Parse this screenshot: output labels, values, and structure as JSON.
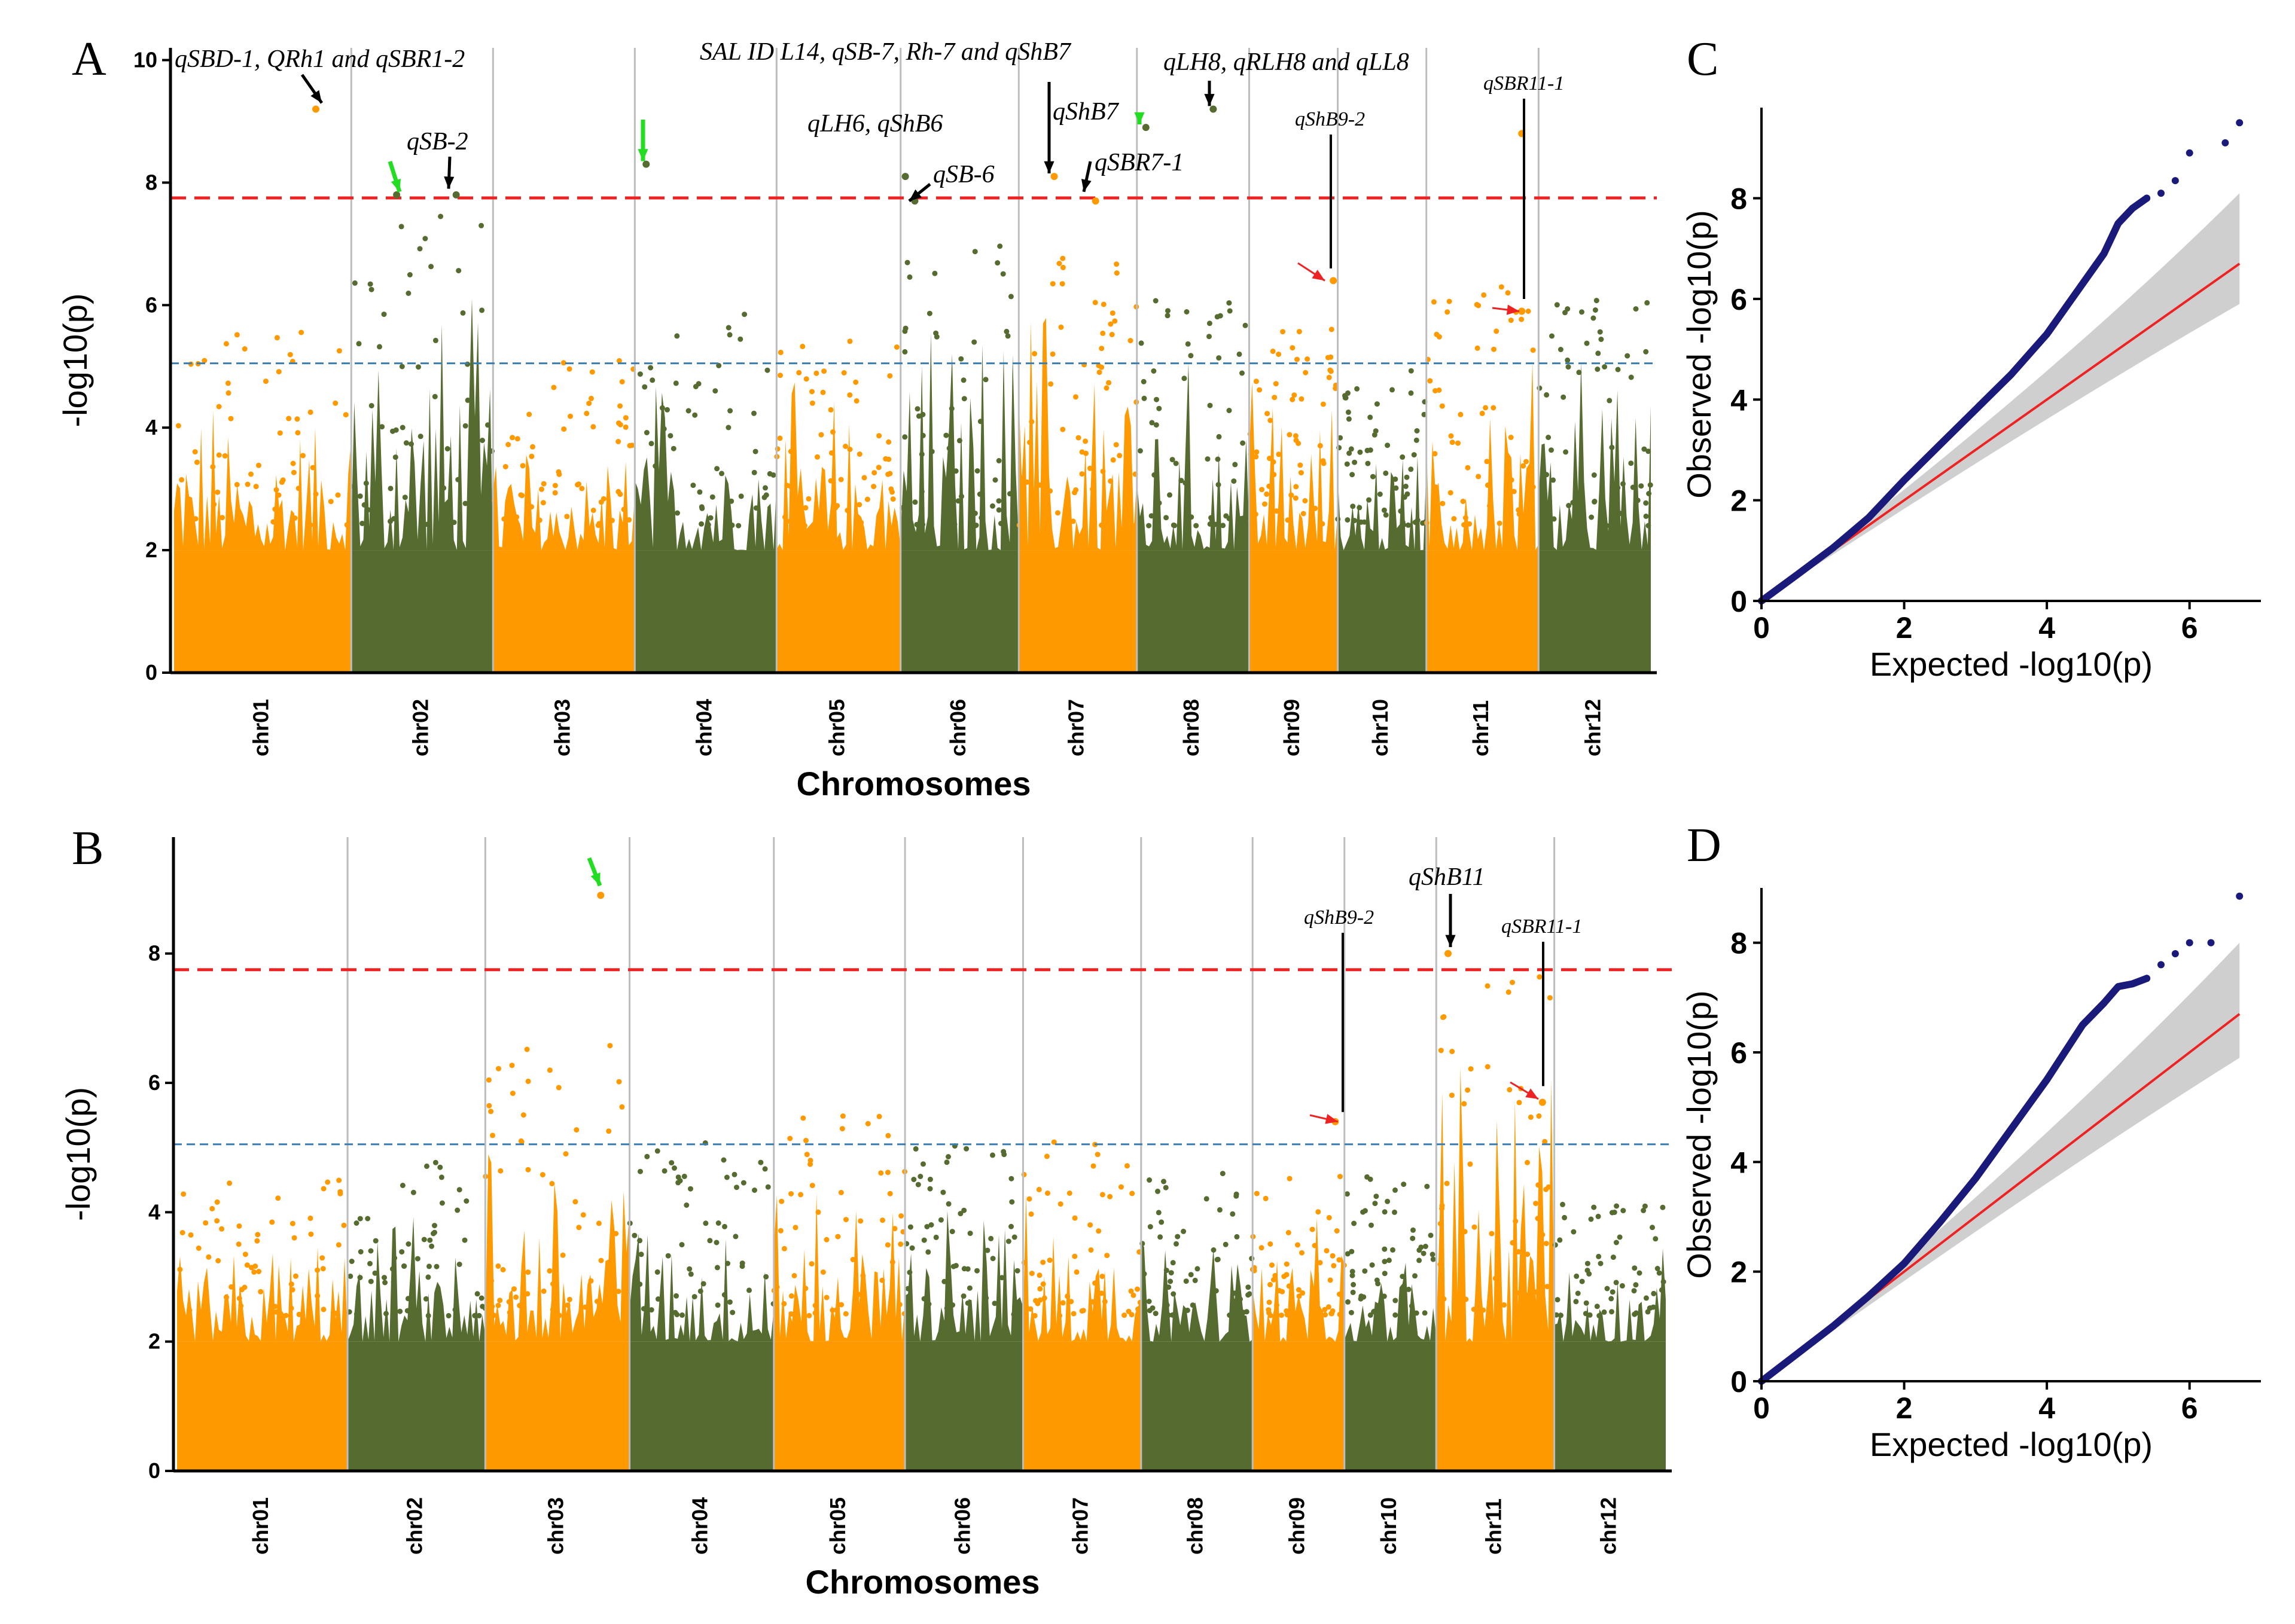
{
  "chart_data": [
    {
      "panel": "A",
      "type": "scatter",
      "subtype": "manhattan",
      "xlabel": "Chromosomes",
      "ylabel": "-log10(p)",
      "ylim": [
        0,
        10.2
      ],
      "yticks": [
        0,
        2,
        4,
        6,
        8,
        10
      ],
      "colors": [
        "#ff9900",
        "#556b2f"
      ],
      "bonferroni": 7.75,
      "suggestive": 5.05,
      "categories": [
        "chr01",
        "chr02",
        "chr03",
        "chr04",
        "chr05",
        "chr06",
        "chr07",
        "chr08",
        "chr09",
        "chr10",
        "chr11",
        "chr12"
      ],
      "chr_widths": [
        1.5,
        1.2,
        1.2,
        1.2,
        1.05,
        1.0,
        1.0,
        0.95,
        0.75,
        0.75,
        0.95,
        0.95
      ],
      "chr_base_max": [
        5.0,
        7.0,
        4.5,
        5.5,
        5.0,
        6.5,
        6.8,
        5.5,
        5.3,
        4.5,
        5.7,
        5.5
      ],
      "highlight_points": [
        {
          "chr": "chr01",
          "pos": 0.8,
          "y": 9.2
        },
        {
          "chr": "chr02",
          "pos": 0.32,
          "y": 7.8
        },
        {
          "chr": "chr02",
          "pos": 0.74,
          "y": 7.8
        },
        {
          "chr": "chr04",
          "pos": 0.08,
          "y": 8.3
        },
        {
          "chr": "chr06",
          "pos": 0.04,
          "y": 8.1
        },
        {
          "chr": "chr06",
          "pos": 0.12,
          "y": 7.7
        },
        {
          "chr": "chr07",
          "pos": 0.3,
          "y": 8.1
        },
        {
          "chr": "chr07",
          "pos": 0.65,
          "y": 7.7
        },
        {
          "chr": "chr08",
          "pos": 0.08,
          "y": 8.9
        },
        {
          "chr": "chr08",
          "pos": 0.68,
          "y": 9.2
        },
        {
          "chr": "chr09",
          "pos": 0.95,
          "y": 6.4
        },
        {
          "chr": "chr11",
          "pos": 0.85,
          "y": 8.8
        },
        {
          "chr": "chr11",
          "pos": 0.85,
          "y": 5.9
        }
      ],
      "annotations": [
        {
          "text": "qSBD-1, QRh1 and qSBR1-2",
          "chr": "chr01",
          "pos": 0.8,
          "label_y": 10.3,
          "point_y": 9.2
        },
        {
          "text": "qSB-2",
          "chr": "chr02",
          "pos": 0.74,
          "label_y": 8.8,
          "point_y": 7.85
        },
        {
          "text": "SAL ID L14, qSB-7, Rh-7 and qShB7",
          "chr": "chr06",
          "pos": 0.6,
          "label_y": 10.4,
          "point_y": null
        },
        {
          "text": "qLH6, qShB6",
          "chr": "chr06",
          "pos": -0.2,
          "label_y": 9.1,
          "point_y": null
        },
        {
          "text": "qSB-6",
          "chr": "chr06",
          "pos": 0.5,
          "label_y": 8.1,
          "point_y": 7.65
        },
        {
          "text": "qShB7",
          "chr": "chr07",
          "pos": 0.35,
          "label_y": 9.2,
          "point_y": 8.1
        },
        {
          "text": "qSBR7-1",
          "chr": "chr07",
          "pos": 0.7,
          "label_y": 8.5,
          "point_y": 7.8
        },
        {
          "text": "qLH8, qRLH8 and qLL8",
          "chr": "chr08",
          "pos": 0.68,
          "label_y": 10.1,
          "point_y": 9.2
        },
        {
          "text": "qShB9-2",
          "chr": "chr09",
          "pos": 0.95,
          "label_y": 9.0,
          "point_y": 6.45
        },
        {
          "text": "qSBR11-1",
          "chr": "chr11",
          "pos": 0.85,
          "label_y": 9.6,
          "point_y": 5.9
        }
      ]
    },
    {
      "panel": "B",
      "type": "scatter",
      "subtype": "manhattan",
      "xlabel": "Chromosomes",
      "ylabel": "-log10(p)",
      "ylim": [
        0,
        9.8
      ],
      "yticks": [
        0,
        2,
        4,
        6,
        8
      ],
      "colors": [
        "#ff9900",
        "#556b2f"
      ],
      "bonferroni": 7.75,
      "suggestive": 5.05,
      "categories": [
        "chr01",
        "chr02",
        "chr03",
        "chr04",
        "chr05",
        "chr06",
        "chr07",
        "chr08",
        "chr09",
        "chr10",
        "chr11",
        "chr12"
      ],
      "chr_widths": [
        1.3,
        1.05,
        1.1,
        1.1,
        1.0,
        0.9,
        0.9,
        0.85,
        0.7,
        0.7,
        0.9,
        0.85
      ],
      "chr_base_max": [
        4.0,
        4.2,
        6.0,
        4.5,
        4.9,
        4.5,
        4.5,
        4.0,
        4.0,
        4.0,
        7.6,
        3.6
      ],
      "highlight_points": [
        {
          "chr": "chr03",
          "pos": 0.8,
          "y": 8.9
        },
        {
          "chr": "chr09",
          "pos": 0.9,
          "y": 5.4
        },
        {
          "chr": "chr11",
          "pos": 0.1,
          "y": 8.0
        },
        {
          "chr": "chr11",
          "pos": 0.9,
          "y": 5.7
        }
      ],
      "annotations": [
        {
          "text": "qShB9-2",
          "chr": "chr09",
          "pos": 0.9,
          "label_y": 8.6,
          "point_y": 5.45
        },
        {
          "text": "qShB11",
          "chr": "chr11",
          "pos": 0.1,
          "label_y": 9.2,
          "point_y": 8.1
        },
        {
          "text": "qSBR11-1",
          "chr": "chr11",
          "pos": 0.9,
          "label_y": 8.5,
          "point_y": 5.8
        }
      ]
    },
    {
      "panel": "C",
      "type": "scatter",
      "subtype": "qq",
      "xlabel": "Expected -log10(p)",
      "ylabel": "Observed -log10(p)",
      "xlim": [
        0,
        7.0
      ],
      "ylim": [
        0,
        9.8
      ],
      "xticks": [
        0,
        2,
        4,
        6
      ],
      "yticks": [
        0,
        2,
        4,
        6,
        8
      ],
      "x": [
        0,
        0.5,
        1.0,
        1.5,
        2.0,
        2.5,
        3.0,
        3.5,
        4.0,
        4.5,
        4.8,
        5.0,
        5.2,
        5.4,
        5.6,
        5.8,
        6.0,
        6.5,
        6.7
      ],
      "y": [
        0,
        0.52,
        1.05,
        1.65,
        2.4,
        3.1,
        3.8,
        4.5,
        5.3,
        6.3,
        6.9,
        7.5,
        7.8,
        8.0,
        8.1,
        8.35,
        8.9,
        9.1,
        9.5
      ],
      "expected_line": [
        [
          0,
          0
        ],
        [
          6.7,
          6.7
        ]
      ],
      "ci_upper_end": 8.1,
      "ci_lower_end": 5.9
    },
    {
      "panel": "D",
      "type": "scatter",
      "subtype": "qq",
      "xlabel": "Expected -log10(p)",
      "ylabel": "Observed -log10(p)",
      "xlim": [
        0,
        7.0
      ],
      "ylim": [
        0,
        9.0
      ],
      "xticks": [
        0,
        2,
        4,
        6
      ],
      "yticks": [
        0,
        2,
        4,
        6,
        8
      ],
      "x": [
        0,
        0.5,
        1.0,
        1.5,
        2.0,
        2.5,
        3.0,
        3.5,
        4.0,
        4.5,
        4.8,
        5.0,
        5.2,
        5.4,
        5.6,
        5.8,
        6.0,
        6.3,
        6.7
      ],
      "y": [
        0,
        0.5,
        1.0,
        1.55,
        2.15,
        2.9,
        3.7,
        4.6,
        5.5,
        6.5,
        6.9,
        7.2,
        7.25,
        7.35,
        7.6,
        7.8,
        8.0,
        8.0,
        8.85
      ],
      "expected_line": [
        [
          0,
          0
        ],
        [
          6.7,
          6.7
        ]
      ],
      "ci_upper_end": 8.0,
      "ci_lower_end": 5.9
    }
  ]
}
